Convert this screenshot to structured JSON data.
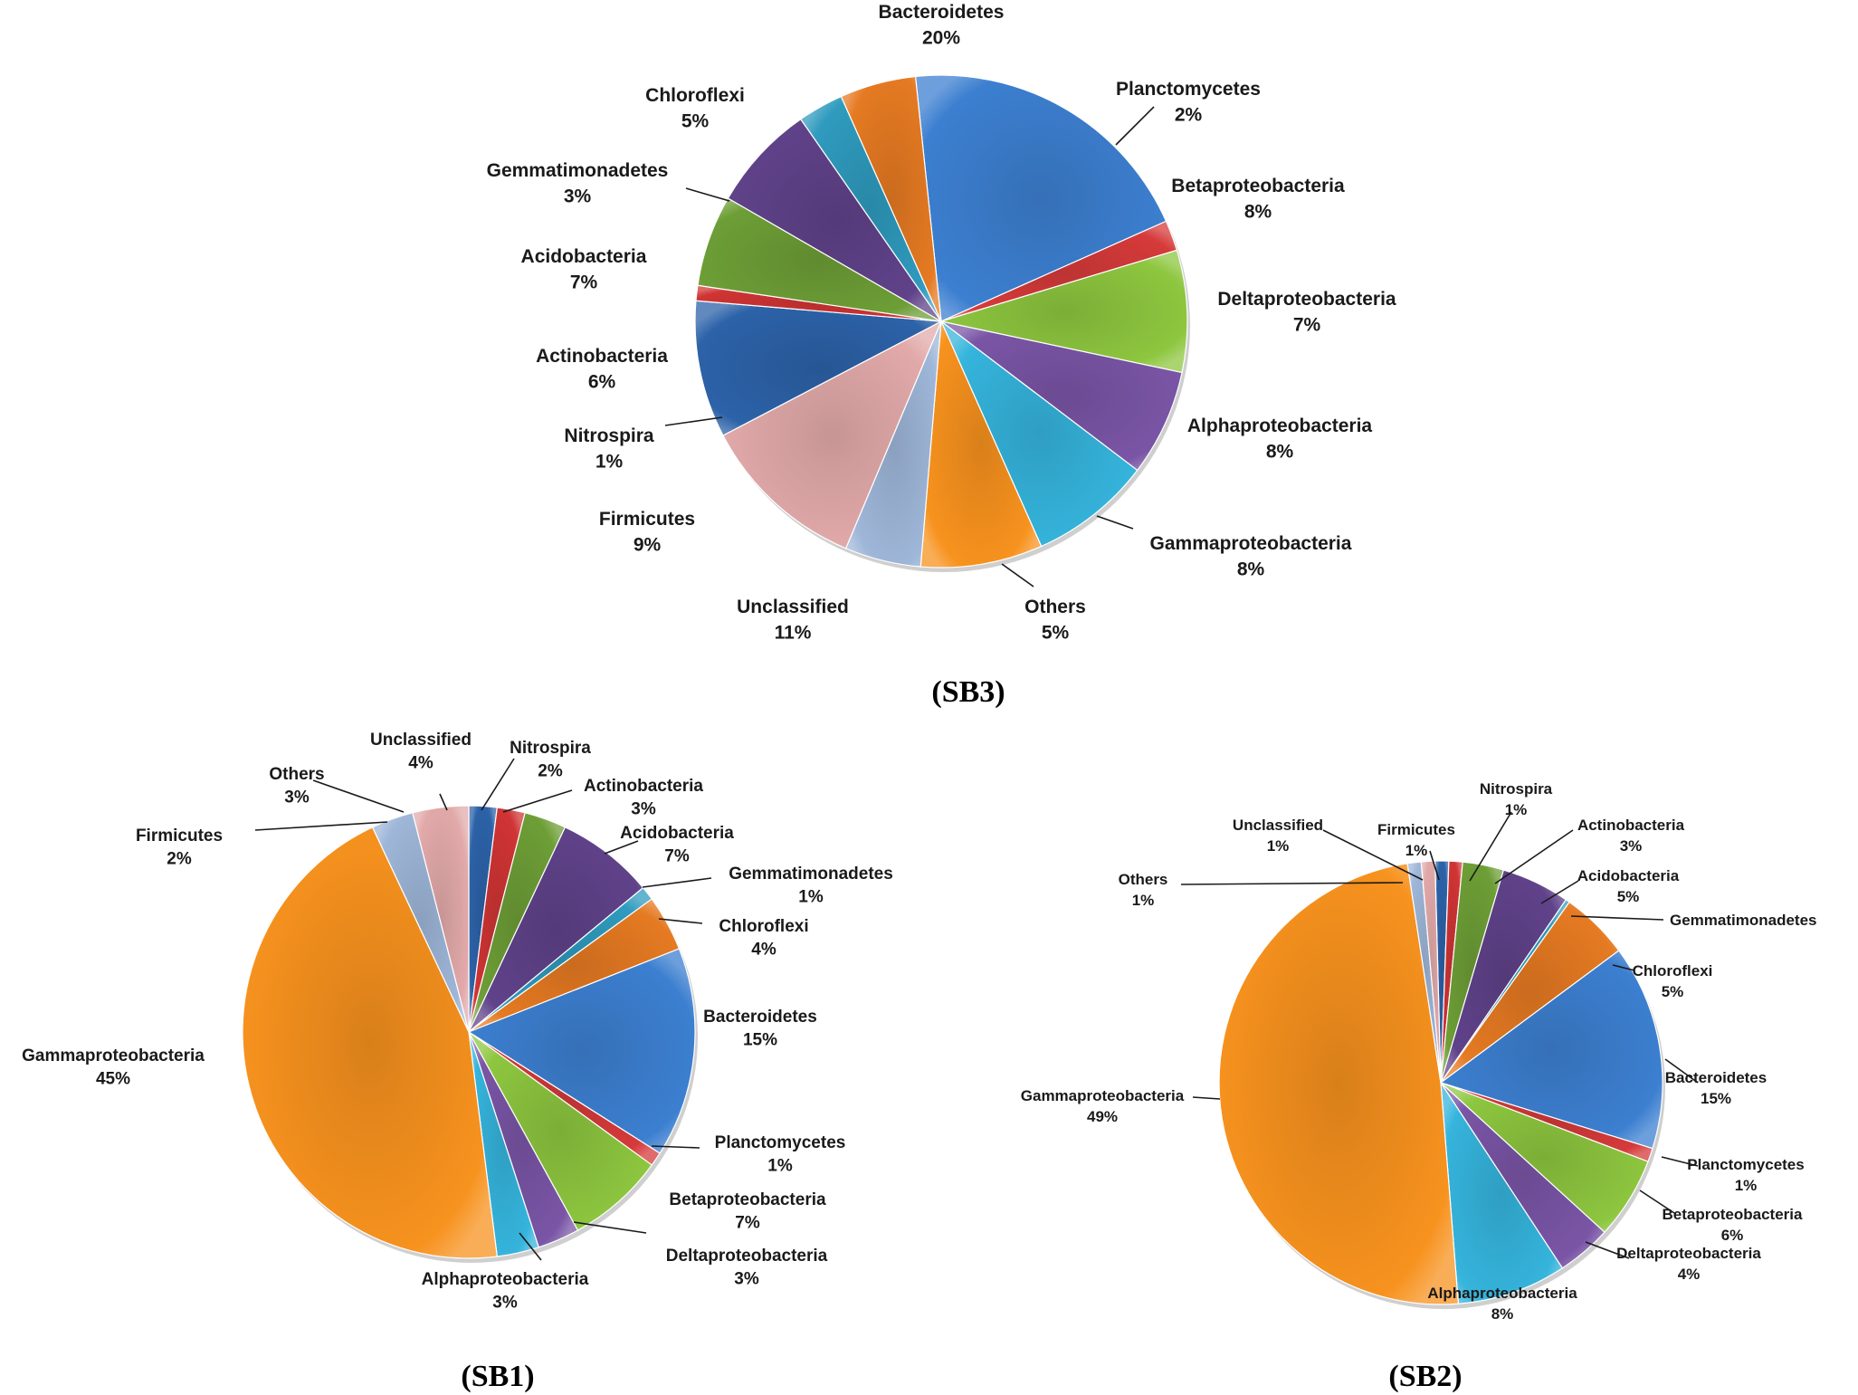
{
  "colors": {
    "Bacteroidetes": "#3c7fd0",
    "Planctomycetes": "#d63a3a",
    "Betaproteobacteria": "#8dc63f",
    "Deltaproteobacteria": "#7a55a6",
    "Alphaproteobacteria": "#35b4dc",
    "Gammaproteobacteria": "#f7921e",
    "Others": "#9eb6d8",
    "Unclassified": "#e2a9a9",
    "Firmicutes": "#2c62a8",
    "Nitrospira": "#d03434",
    "Actinobacteria": "#6d9e36",
    "Acidobacteria": "#60428a",
    "Gemmatimonadetes": "#2f9bbe",
    "Chloroflexi": "#e57a22"
  },
  "chart_data": [
    {
      "type": "pie",
      "title": "(SB3)",
      "slices": [
        {
          "name": "Bacteroidetes",
          "value": 20,
          "label": "20%"
        },
        {
          "name": "Planctomycetes",
          "value": 2,
          "label": "2%"
        },
        {
          "name": "Betaproteobacteria",
          "value": 8,
          "label": "8%"
        },
        {
          "name": "Deltaproteobacteria",
          "value": 7,
          "label": "7%"
        },
        {
          "name": "Alphaproteobacteria",
          "value": 8,
          "label": "8%"
        },
        {
          "name": "Gammaproteobacteria",
          "value": 8,
          "label": "8%"
        },
        {
          "name": "Others",
          "value": 5,
          "label": "5%"
        },
        {
          "name": "Unclassified",
          "value": 11,
          "label": "11%"
        },
        {
          "name": "Firmicutes",
          "value": 9,
          "label": "9%"
        },
        {
          "name": "Nitrospira",
          "value": 1,
          "label": "1%"
        },
        {
          "name": "Actinobacteria",
          "value": 6,
          "label": "6%"
        },
        {
          "name": "Acidobacteria",
          "value": 7,
          "label": "7%"
        },
        {
          "name": "Gemmatimonadetes",
          "value": 3,
          "label": "3%"
        },
        {
          "name": "Chloroflexi",
          "value": 5,
          "label": "5%"
        }
      ]
    },
    {
      "type": "pie",
      "title": "(SB1)",
      "slices": [
        {
          "name": "Firmicutes",
          "value": 2,
          "label": "2%"
        },
        {
          "name": "Nitrospira",
          "value": 2,
          "label": "2%"
        },
        {
          "name": "Actinobacteria",
          "value": 3,
          "label": "3%"
        },
        {
          "name": "Acidobacteria",
          "value": 7,
          "label": "7%"
        },
        {
          "name": "Gemmatimonadetes",
          "value": 1,
          "label": "1%"
        },
        {
          "name": "Chloroflexi",
          "value": 4,
          "label": "4%"
        },
        {
          "name": "Bacteroidetes",
          "value": 15,
          "label": "15%"
        },
        {
          "name": "Planctomycetes",
          "value": 1,
          "label": "1%"
        },
        {
          "name": "Betaproteobacteria",
          "value": 7,
          "label": "7%"
        },
        {
          "name": "Deltaproteobacteria",
          "value": 3,
          "label": "3%"
        },
        {
          "name": "Alphaproteobacteria",
          "value": 3,
          "label": "3%"
        },
        {
          "name": "Gammaproteobacteria",
          "value": 45,
          "label": "45%"
        },
        {
          "name": "Others",
          "value": 3,
          "label": "3%"
        },
        {
          "name": "Unclassified",
          "value": 4,
          "label": "4%"
        }
      ]
    },
    {
      "type": "pie",
      "title": "(SB2)",
      "slices": [
        {
          "name": "Firmicutes",
          "value": 1,
          "label": "1%"
        },
        {
          "name": "Nitrospira",
          "value": 1,
          "label": "1%"
        },
        {
          "name": "Actinobacteria",
          "value": 3,
          "label": "3%"
        },
        {
          "name": "Acidobacteria",
          "value": 5,
          "label": "5%"
        },
        {
          "name": "Gemmatimonadetes",
          "value": 0.3,
          "label": ""
        },
        {
          "name": "Chloroflexi",
          "value": 5,
          "label": "5%"
        },
        {
          "name": "Bacteroidetes",
          "value": 15,
          "label": "15%"
        },
        {
          "name": "Planctomycetes",
          "value": 1,
          "label": "1%"
        },
        {
          "name": "Betaproteobacteria",
          "value": 6,
          "label": "6%"
        },
        {
          "name": "Deltaproteobacteria",
          "value": 4,
          "label": "4%"
        },
        {
          "name": "Alphaproteobacteria",
          "value": 8,
          "label": "8%"
        },
        {
          "name": "Gammaproteobacteria",
          "value": 49,
          "label": "49%"
        },
        {
          "name": "Others",
          "value": 1,
          "label": "1%"
        },
        {
          "name": "Unclassified",
          "value": 1,
          "label": "1%"
        }
      ]
    }
  ]
}
